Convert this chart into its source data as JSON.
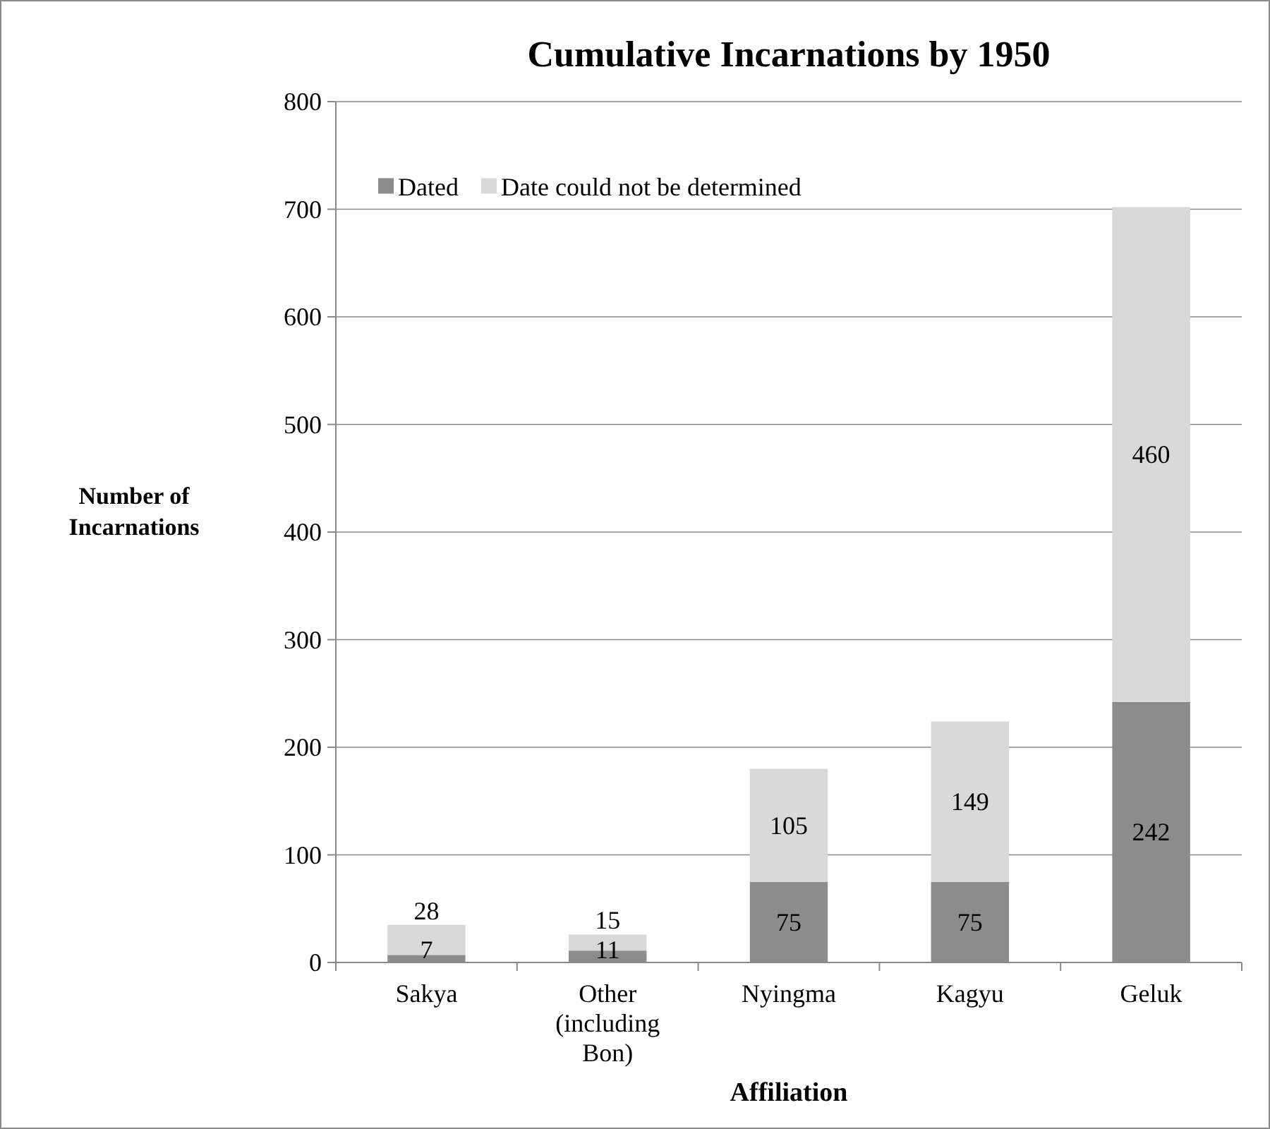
{
  "chart_data": {
    "type": "bar",
    "title": "Cumulative Incarnations by 1950",
    "xlabel": "Affiliation",
    "ylabel": "Number of Incarnations",
    "categories": [
      "Sakya",
      "Other (including Bon)",
      "Nyingma",
      "Kagyu",
      "Geluk"
    ],
    "series": [
      {
        "name": "Dated",
        "color": "#8c8c8c",
        "values": [
          7,
          11,
          75,
          75,
          242
        ]
      },
      {
        "name": "Date could not be determined",
        "color": "#d9d9d9",
        "values": [
          28,
          15,
          105,
          149,
          460
        ]
      }
    ],
    "stacked": true,
    "ylim": [
      0,
      800
    ],
    "yticks": [
      0,
      100,
      200,
      300,
      400,
      500,
      600,
      700,
      800
    ],
    "grid": "y",
    "legend": "top left",
    "data_labels": true
  }
}
